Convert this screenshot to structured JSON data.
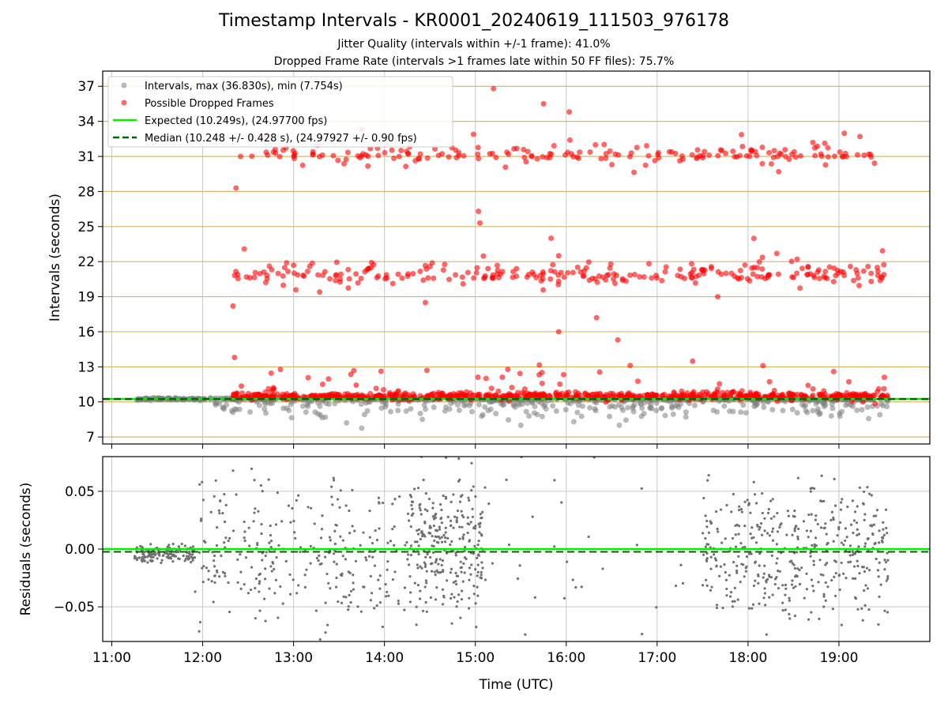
{
  "title": "Timestamp Intervals - KR0001_20240619_111503_976178",
  "subtitle_1": "Jitter Quality (intervals within +/-1 frame): 41.0%",
  "subtitle_2": "Dropped Frame Rate (intervals >1 frames late within 50 FF files): 75.7%",
  "colors": {
    "interval_points": "#808080",
    "dropped_points": "#ff0000",
    "expected_line": "#00ee00",
    "median_line": "#006400",
    "hgrid_top": "#d4b96a",
    "vgrid": "#c8c8c8",
    "residual_points": "#707070"
  },
  "chart_data": [
    {
      "type": "scatter",
      "ylabel": "Intervals (seconds)",
      "ylim": [
        6.4,
        38.3
      ],
      "xlim_hours": [
        10.9,
        20.0
      ],
      "yticks": [
        "7",
        "10",
        "13",
        "16",
        "19",
        "22",
        "25",
        "28",
        "31",
        "34",
        "37"
      ],
      "yticks_values": [
        7,
        10,
        13,
        16,
        19,
        22,
        25,
        28,
        31,
        34,
        37
      ],
      "grid": "horizontal lines at y ticks (tan), vertical lines at hour ticks (gray)",
      "legend_position": "top-left",
      "legend": [
        "Intervals, max (36.830s), min (7.754s)",
        "Possible Dropped Frames",
        "Expected (10.249s), (24.97700 fps)",
        "Median (10.248 +/- 0.428 s), (24.97927 +/- 0.90 fps)"
      ],
      "expected_value": 10.249,
      "median_value": 10.248,
      "series": [
        {
          "name": "Intervals, max (36.830s), min (7.754s)",
          "color": "gray",
          "x_range": [
            "11:15",
            "19:33"
          ],
          "typical_y": 10.25,
          "min": 7.754,
          "max": 36.83,
          "sample_points": [
            {
              "x": "11:45",
              "y": 10.25
            },
            {
              "x": "12:20",
              "y": 9.1
            },
            {
              "x": "13:35",
              "y": 8.2
            },
            {
              "x": "13:45",
              "y": 7.75
            },
            {
              "x": "14:25",
              "y": 8.5
            },
            {
              "x": "15:05",
              "y": 8.9
            },
            {
              "x": "15:30",
              "y": 8.0
            },
            {
              "x": "16:05",
              "y": 8.3
            },
            {
              "x": "16:35",
              "y": 8.0
            },
            {
              "x": "18:55",
              "y": 8.8
            },
            {
              "x": "19:27",
              "y": 8.9
            }
          ]
        },
        {
          "name": "Possible Dropped Frames",
          "color": "red",
          "bands": [
            {
              "label": "~1 frame late",
              "y_center": 10.4,
              "x_range": [
                "12:20",
                "19:33"
              ]
            },
            {
              "label": "~2 frames late",
              "y_center": 20.5,
              "x_range": [
                "12:20",
                "19:33"
              ]
            },
            {
              "label": "~3 frames late",
              "y_center": 30.8,
              "x_range": [
                "12:25",
                "19:25"
              ]
            }
          ],
          "sample_points": [
            {
              "x": "12:22",
              "y": 28.3
            },
            {
              "x": "12:25",
              "y": 31.0
            },
            {
              "x": "13:45",
              "y": 33.3
            },
            {
              "x": "15:02",
              "y": 26.3
            },
            {
              "x": "15:03",
              "y": 25.3
            },
            {
              "x": "15:12",
              "y": 36.8
            },
            {
              "x": "15:45",
              "y": 35.5
            },
            {
              "x": "16:02",
              "y": 34.8
            },
            {
              "x": "15:50",
              "y": 24.0
            },
            {
              "x": "15:55",
              "y": 22.5
            },
            {
              "x": "15:55",
              "y": 16.0
            },
            {
              "x": "16:34",
              "y": 15.3
            },
            {
              "x": "16:20",
              "y": 17.2
            },
            {
              "x": "12:20",
              "y": 18.2
            },
            {
              "x": "12:21",
              "y": 13.8
            },
            {
              "x": "14:27",
              "y": 18.5
            },
            {
              "x": "17:40",
              "y": 19.0
            },
            {
              "x": "19:30",
              "y": 12.1
            }
          ]
        },
        {
          "name": "Expected (10.249s), (24.97700 fps)",
          "type": "hline",
          "y": 10.249
        },
        {
          "name": "Median (10.248 +/- 0.428 s), (24.97927 +/- 0.90 fps)",
          "type": "hline",
          "style": "dashed",
          "y": 10.248
        }
      ]
    },
    {
      "type": "scatter",
      "xlabel": "Time (UTC)",
      "ylabel": "Residuals (seconds)",
      "ylim": [
        -0.08,
        0.08
      ],
      "yticks": [
        "−0.05",
        "0.00",
        "0.05"
      ],
      "yticks_values": [
        -0.05,
        0.0,
        0.05
      ],
      "xticks": [
        "11:00",
        "12:00",
        "13:00",
        "14:00",
        "15:00",
        "16:00",
        "17:00",
        "18:00",
        "19:00"
      ],
      "xticks_values": [
        11,
        12,
        13,
        14,
        15,
        16,
        17,
        18,
        19
      ],
      "grid": true,
      "series": [
        {
          "name": "Residuals",
          "color": "gray",
          "clusters": [
            {
              "x_range": [
                "11:15",
                "11:55"
              ],
              "y_range": [
                -0.012,
                0.005
              ]
            },
            {
              "x_range": [
                "11:55",
                "14:15"
              ],
              "y_range": [
                -0.08,
                0.08
              ]
            },
            {
              "x_range": [
                "14:15",
                "15:05"
              ],
              "y_range": [
                -0.07,
                0.08
              ]
            },
            {
              "x_range": [
                "17:30",
                "19:33"
              ],
              "y_range": [
                -0.08,
                0.08
              ]
            }
          ]
        },
        {
          "name": "Expected",
          "type": "hline",
          "y": 0.0
        },
        {
          "name": "Median",
          "type": "hline",
          "style": "dashed",
          "y": -0.001
        }
      ]
    }
  ]
}
